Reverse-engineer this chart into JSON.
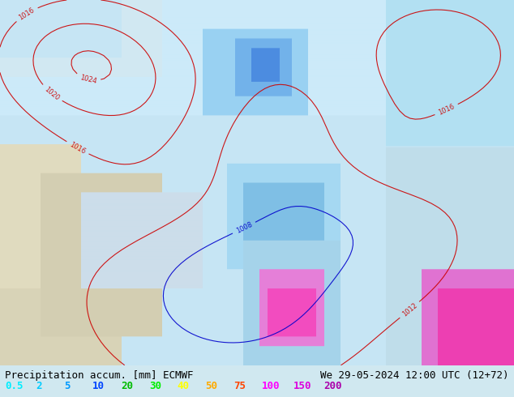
{
  "title_left": "Precipitation accum. [mm] ECMWF",
  "title_right": "We 29-05-2024 12:00 UTC (12+72)",
  "legend_values": [
    "0.5",
    "2",
    "5",
    "10",
    "20",
    "30",
    "40",
    "50",
    "75",
    "100",
    "150",
    "200"
  ],
  "legend_colors": [
    "#00ffff",
    "#00d4ff",
    "#00aaff",
    "#0055ff",
    "#00cc00",
    "#00ff00",
    "#ffff00",
    "#ffaa00",
    "#ff5500",
    "#ff00ff",
    "#cc00cc",
    "#aa00aa"
  ],
  "bg_color": "#c8e8f8",
  "map_bg": "#c8e8f0",
  "fig_width": 6.34,
  "fig_height": 4.9,
  "dpi": 100,
  "bottom_text_color": "#000000",
  "legend_fontsize": 9,
  "title_fontsize": 9
}
